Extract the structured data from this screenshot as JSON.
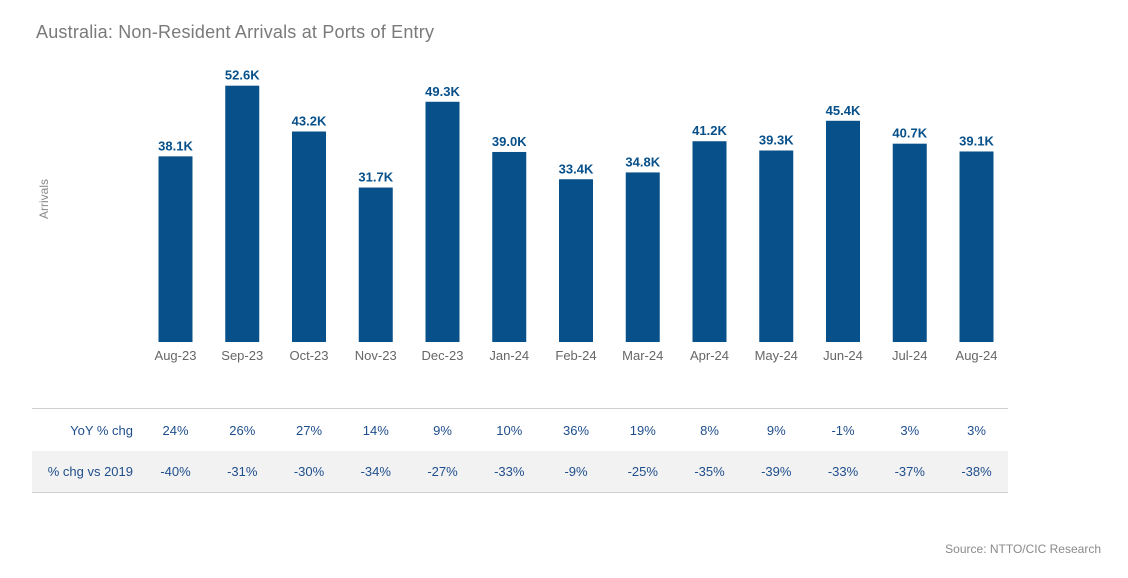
{
  "chart_data": {
    "type": "bar",
    "title": "Australia: Non-Resident Arrivals at Ports of Entry",
    "ylabel": "Arrivals",
    "xlabel": "",
    "ylim": [
      0,
      55000
    ],
    "grid": false,
    "categories": [
      "Aug-23",
      "Sep-23",
      "Oct-23",
      "Nov-23",
      "Dec-23",
      "Jan-24",
      "Feb-24",
      "Mar-24",
      "Apr-24",
      "May-24",
      "Jun-24",
      "Jul-24",
      "Aug-24"
    ],
    "values": [
      38100,
      52600,
      43200,
      31700,
      49300,
      39000,
      33400,
      34800,
      41200,
      39300,
      45400,
      40700,
      39100
    ],
    "data_labels": [
      "38.1K",
      "52.6K",
      "43.2K",
      "31.7K",
      "49.3K",
      "39.0K",
      "33.4K",
      "34.8K",
      "41.2K",
      "39.3K",
      "45.4K",
      "40.7K",
      "39.1K"
    ],
    "bar_color": "#07508a"
  },
  "table": {
    "rows": [
      {
        "label": "YoY % chg",
        "values": [
          "24%",
          "26%",
          "27%",
          "14%",
          "9%",
          "10%",
          "36%",
          "19%",
          "8%",
          "9%",
          "-1%",
          "3%",
          "3%"
        ]
      },
      {
        "label": "% chg vs 2019",
        "values": [
          "-40%",
          "-31%",
          "-30%",
          "-34%",
          "-27%",
          "-33%",
          "-9%",
          "-25%",
          "-35%",
          "-39%",
          "-33%",
          "-37%",
          "-38%"
        ]
      }
    ]
  },
  "source": "Source: NTTO/CIC Research"
}
